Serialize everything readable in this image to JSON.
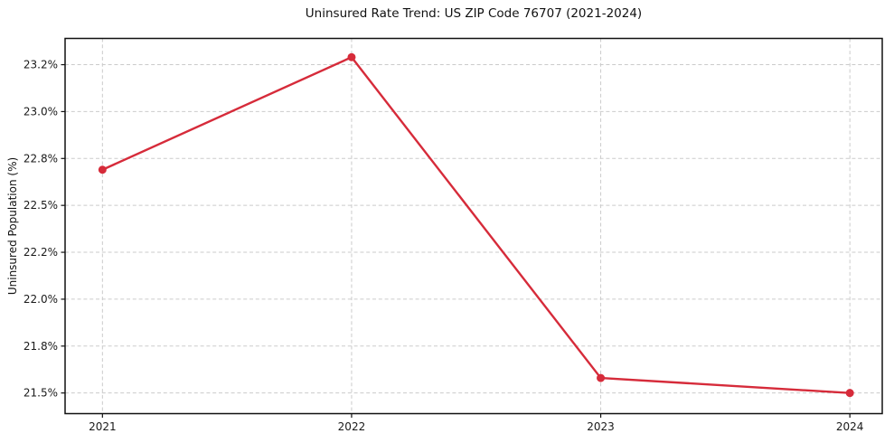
{
  "chart_data": {
    "type": "line",
    "title": "Uninsured Rate Trend: US ZIP Code 76707 (2021-2024)",
    "xlabel": "",
    "ylabel": "Uninsured Population (%)",
    "x": [
      2021,
      2022,
      2023,
      2024
    ],
    "values": [
      22.69,
      23.29,
      21.58,
      21.5
    ],
    "x_tick_labels": [
      "2021",
      "2022",
      "2023",
      "2024"
    ],
    "y_ticks": [
      {
        "value": 21.5,
        "label": "21.5%"
      },
      {
        "value": 21.75,
        "label": "21.8%"
      },
      {
        "value": 22.0,
        "label": "22.0%"
      },
      {
        "value": 22.25,
        "label": "22.2%"
      },
      {
        "value": 22.5,
        "label": "22.5%"
      },
      {
        "value": 22.75,
        "label": "22.8%"
      },
      {
        "value": 23.0,
        "label": "23.0%"
      },
      {
        "value": 23.25,
        "label": "23.2%"
      }
    ],
    "xlim": [
      2020.85,
      2024.13
    ],
    "ylim": [
      21.39,
      23.39
    ],
    "grid": true,
    "grid_style": "dashed",
    "legend": "none",
    "line_color": "#d62b3a",
    "marker": "circle",
    "marker_size": 4.5,
    "grid_color": "#cbcbcb",
    "axis_color": "#111111",
    "text_color": "#1a1a1a",
    "background_color": "#ffffff"
  }
}
